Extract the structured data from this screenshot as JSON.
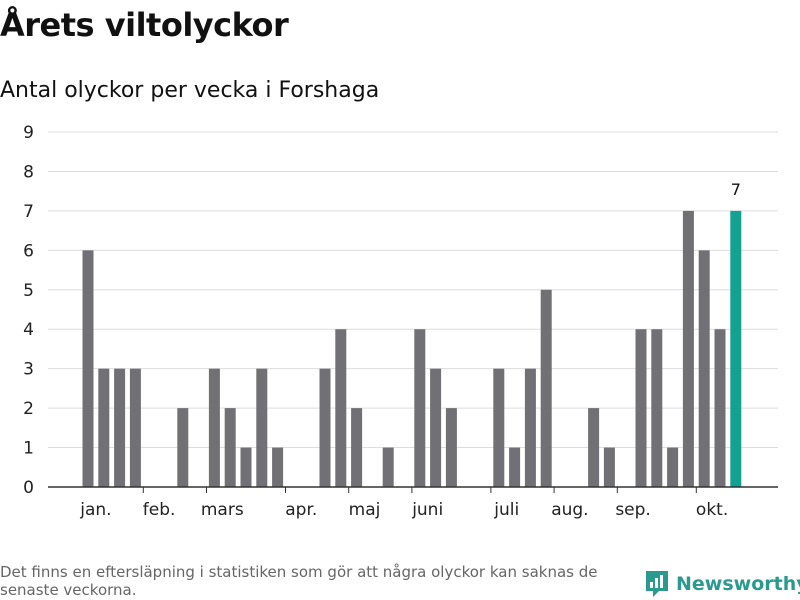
{
  "header": {
    "title": "Årets viltolyckor",
    "subtitle": "Antal olyckor per vecka i Forshaga"
  },
  "footer": {
    "footnote": "Det finns en eftersläpning i statistiken som gör att några olyckor kan saknas de senaste veckorna.",
    "brand": "Newsworthy"
  },
  "colors": {
    "bar": "#717075",
    "highlight": "#13a192",
    "grid": "#dddddd",
    "axis": "#333333",
    "brand": "#2a9a8e"
  },
  "chart_data": {
    "type": "bar",
    "title": "Årets viltolyckor",
    "subtitle": "Antal olyckor per vecka i Forshaga",
    "xlabel": "",
    "ylabel": "",
    "ylim": [
      0,
      9
    ],
    "yticks": [
      0,
      1,
      2,
      3,
      4,
      5,
      6,
      7,
      8,
      9
    ],
    "grid": true,
    "week_range": [
      1,
      42
    ],
    "values": [
      6,
      3,
      3,
      3,
      0,
      0,
      2,
      0,
      3,
      2,
      1,
      3,
      1,
      0,
      0,
      3,
      4,
      2,
      0,
      1,
      0,
      4,
      3,
      2,
      0,
      0,
      3,
      1,
      3,
      5,
      0,
      0,
      2,
      1,
      0,
      4,
      4,
      1,
      7,
      6,
      4,
      7
    ],
    "highlight_index": 41,
    "highlight_label": "7",
    "month_labels": [
      {
        "label": "jan.",
        "week": 1.5
      },
      {
        "label": "feb.",
        "week": 5.5
      },
      {
        "label": "mars",
        "week": 9.5
      },
      {
        "label": "apr.",
        "week": 14.5
      },
      {
        "label": "maj",
        "week": 18.5
      },
      {
        "label": "juni",
        "week": 22.5
      },
      {
        "label": "juli",
        "week": 27.5
      },
      {
        "label": "aug.",
        "week": 31.5
      },
      {
        "label": "sep.",
        "week": 35.5
      },
      {
        "label": "okt.",
        "week": 40.5
      }
    ],
    "month_boundaries": [
      5,
      9,
      14,
      18,
      22,
      27,
      31,
      35,
      40
    ]
  }
}
